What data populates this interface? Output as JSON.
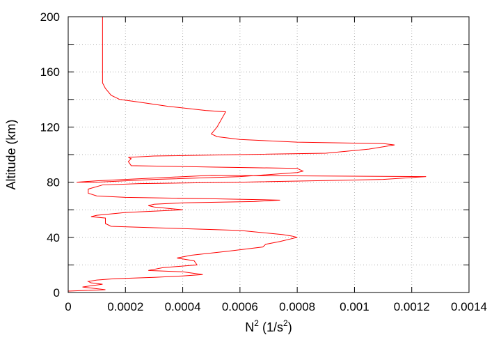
{
  "chart_data": {
    "type": "line",
    "xlabel_main": "N",
    "xlabel_exp": "2",
    "xlabel_unit_open": " (1/s",
    "xlabel_unit_exp": "2",
    "xlabel_unit_close": ")",
    "ylabel": "Altitude (km)",
    "xlim": [
      0,
      0.0014
    ],
    "ylim": [
      0,
      200
    ],
    "xticks": [
      {
        "v": 0,
        "label": "0"
      },
      {
        "v": 0.0002,
        "label": "0.0002"
      },
      {
        "v": 0.0004,
        "label": "0.0004"
      },
      {
        "v": 0.0006,
        "label": "0.0006"
      },
      {
        "v": 0.0008,
        "label": "0.0008"
      },
      {
        "v": 0.001,
        "label": "0.001"
      },
      {
        "v": 0.0012,
        "label": "0.0012"
      },
      {
        "v": 0.0014,
        "label": "0.0014"
      }
    ],
    "yticks": [
      {
        "v": 0,
        "label": "0"
      },
      {
        "v": 40,
        "label": "40"
      },
      {
        "v": 80,
        "label": "80"
      },
      {
        "v": 120,
        "label": "120"
      },
      {
        "v": 160,
        "label": "160"
      },
      {
        "v": 200,
        "label": "200"
      }
    ],
    "grid": true,
    "color": "#ff0000",
    "series": [
      {
        "x": [
          0.0,
          0.00013,
          5e-05,
          0.00012,
          8e-05,
          7e-05,
          0.0001,
          0.00016,
          0.0003,
          0.0004,
          0.00047,
          0.0004,
          0.00028,
          0.00033,
          0.00045,
          0.00044,
          0.00038,
          0.00043,
          0.00056,
          0.00068,
          0.00069,
          0.00074,
          0.0008,
          0.00078,
          0.00075,
          0.0006,
          0.0003,
          0.00015,
          0.00013,
          0.00013,
          8e-05,
          0.0001,
          0.0002,
          0.0004,
          0.00035,
          0.0003,
          0.00028,
          0.0003,
          0.0004,
          0.00065,
          0.00074,
          0.0005,
          0.0002,
          0.0001,
          7e-05,
          7e-05,
          0.00012,
          0.00025,
          0.0006,
          0.0011,
          0.00125,
          0.0005,
          0.0001,
          3e-05,
          0.0001,
          0.0003,
          0.0006,
          0.0008,
          0.00082,
          0.00081,
          0.0008,
          0.0005,
          0.00022,
          0.00021,
          0.00022,
          0.00021,
          0.0003,
          0.0006,
          0.0009,
          0.00105,
          0.00114,
          0.0011,
          0.0008,
          0.0006,
          0.00052,
          0.0005,
          0.00052,
          0.00055,
          0.00048,
          0.00035,
          0.00025,
          0.00018,
          0.00015,
          0.00013,
          0.00012,
          0.00012,
          0.00012,
          0.00012
        ],
        "y": [
          1,
          2,
          4,
          6,
          7,
          8,
          9,
          10,
          11,
          12,
          13,
          15,
          16,
          18,
          20,
          23,
          25,
          27,
          30,
          33,
          35,
          37,
          40,
          41,
          42,
          45,
          47,
          48,
          50,
          54,
          55,
          56,
          58,
          60,
          61,
          62,
          63,
          64,
          65,
          66,
          67,
          68,
          69,
          70,
          72,
          75,
          78,
          79,
          80,
          82,
          84,
          85,
          81,
          80,
          80,
          82,
          84,
          87,
          88,
          89,
          90,
          91,
          92,
          95,
          97,
          98,
          99,
          100,
          101,
          104,
          107,
          108,
          109,
          111,
          113,
          115,
          120,
          131,
          132,
          135,
          138,
          140,
          143,
          148,
          152,
          160,
          180,
          200
        ]
      }
    ]
  }
}
